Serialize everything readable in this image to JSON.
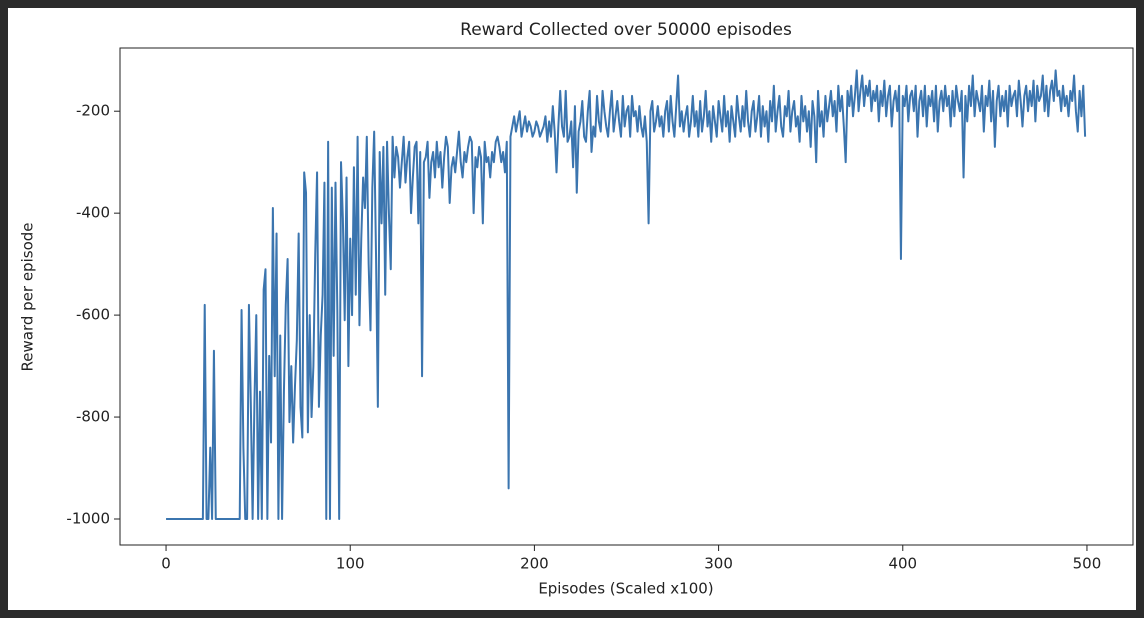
{
  "chart_data": {
    "type": "line",
    "title": "Reward Collected over 50000 episodes",
    "x_label": "Episodes (Scaled x100)",
    "y_label": "Reward per episode",
    "color": "#3b75af",
    "grid": false,
    "xlim": [
      -25,
      525
    ],
    "ylim": [
      -1051,
      -76
    ],
    "xticks": [
      0,
      100,
      200,
      300,
      400,
      500
    ],
    "yticks": [
      -1000,
      -800,
      -600,
      -400,
      -200
    ],
    "x": [
      0,
      1,
      2,
      3,
      4,
      5,
      6,
      7,
      8,
      9,
      10,
      11,
      12,
      13,
      14,
      15,
      16,
      17,
      18,
      19,
      20,
      21,
      22,
      23,
      24,
      25,
      26,
      27,
      28,
      29,
      30,
      31,
      32,
      33,
      34,
      35,
      36,
      37,
      38,
      39,
      40,
      41,
      42,
      43,
      44,
      45,
      46,
      47,
      48,
      49,
      50,
      51,
      52,
      53,
      54,
      55,
      56,
      57,
      58,
      59,
      60,
      61,
      62,
      63,
      64,
      65,
      66,
      67,
      68,
      69,
      70,
      71,
      72,
      73,
      74,
      75,
      76,
      77,
      78,
      79,
      80,
      81,
      82,
      83,
      84,
      85,
      86,
      87,
      88,
      89,
      90,
      91,
      92,
      93,
      94,
      95,
      96,
      97,
      98,
      99,
      100,
      101,
      102,
      103,
      104,
      105,
      106,
      107,
      108,
      109,
      110,
      111,
      112,
      113,
      114,
      115,
      116,
      117,
      118,
      119,
      120,
      121,
      122,
      123,
      124,
      125,
      126,
      127,
      128,
      129,
      130,
      131,
      132,
      133,
      134,
      135,
      136,
      137,
      138,
      139,
      140,
      141,
      142,
      143,
      144,
      145,
      146,
      147,
      148,
      149,
      150,
      151,
      152,
      153,
      154,
      155,
      156,
      157,
      158,
      159,
      160,
      161,
      162,
      163,
      164,
      165,
      166,
      167,
      168,
      169,
      170,
      171,
      172,
      173,
      174,
      175,
      176,
      177,
      178,
      179,
      180,
      181,
      182,
      183,
      184,
      185,
      186,
      187,
      188,
      189,
      190,
      191,
      192,
      193,
      194,
      195,
      196,
      197,
      198,
      199,
      200,
      201,
      202,
      203,
      204,
      205,
      206,
      207,
      208,
      209,
      210,
      211,
      212,
      213,
      214,
      215,
      216,
      217,
      218,
      219,
      220,
      221,
      222,
      223,
      224,
      225,
      226,
      227,
      228,
      229,
      230,
      231,
      232,
      233,
      234,
      235,
      236,
      237,
      238,
      239,
      240,
      241,
      242,
      243,
      244,
      245,
      246,
      247,
      248,
      249,
      250,
      251,
      252,
      253,
      254,
      255,
      256,
      257,
      258,
      259,
      260,
      261,
      262,
      263,
      264,
      265,
      266,
      267,
      268,
      269,
      270,
      271,
      272,
      273,
      274,
      275,
      276,
      277,
      278,
      279,
      280,
      281,
      282,
      283,
      284,
      285,
      286,
      287,
      288,
      289,
      290,
      291,
      292,
      293,
      294,
      295,
      296,
      297,
      298,
      299,
      300,
      301,
      302,
      303,
      304,
      305,
      306,
      307,
      308,
      309,
      310,
      311,
      312,
      313,
      314,
      315,
      316,
      317,
      318,
      319,
      320,
      321,
      322,
      323,
      324,
      325,
      326,
      327,
      328,
      329,
      330,
      331,
      332,
      333,
      334,
      335,
      336,
      337,
      338,
      339,
      340,
      341,
      342,
      343,
      344,
      345,
      346,
      347,
      348,
      349,
      350,
      351,
      352,
      353,
      354,
      355,
      356,
      357,
      358,
      359,
      360,
      361,
      362,
      363,
      364,
      365,
      366,
      367,
      368,
      369,
      370,
      371,
      372,
      373,
      374,
      375,
      376,
      377,
      378,
      379,
      380,
      381,
      382,
      383,
      384,
      385,
      386,
      387,
      388,
      389,
      390,
      391,
      392,
      393,
      394,
      395,
      396,
      397,
      398,
      399,
      400,
      401,
      402,
      403,
      404,
      405,
      406,
      407,
      408,
      409,
      410,
      411,
      412,
      413,
      414,
      415,
      416,
      417,
      418,
      419,
      420,
      421,
      422,
      423,
      424,
      425,
      426,
      427,
      428,
      429,
      430,
      431,
      432,
      433,
      434,
      435,
      436,
      437,
      438,
      439,
      440,
      441,
      442,
      443,
      444,
      445,
      446,
      447,
      448,
      449,
      450,
      451,
      452,
      453,
      454,
      455,
      456,
      457,
      458,
      459,
      460,
      461,
      462,
      463,
      464,
      465,
      466,
      467,
      468,
      469,
      470,
      471,
      472,
      473,
      474,
      475,
      476,
      477,
      478,
      479,
      480,
      481,
      482,
      483,
      484,
      485,
      486,
      487,
      488,
      489,
      490,
      491,
      492,
      493,
      494,
      495,
      496,
      497,
      498,
      499
    ],
    "values": [
      -1000,
      -1000,
      -1000,
      -1000,
      -1000,
      -1000,
      -1000,
      -1000,
      -1000,
      -1000,
      -1000,
      -1000,
      -1000,
      -1000,
      -1000,
      -1000,
      -1000,
      -1000,
      -1000,
      -1000,
      -1000,
      -580,
      -1000,
      -1000,
      -860,
      -1000,
      -670,
      -1000,
      -1000,
      -1000,
      -1000,
      -1000,
      -1000,
      -1000,
      -1000,
      -1000,
      -1000,
      -1000,
      -1000,
      -1000,
      -1000,
      -590,
      -860,
      -1000,
      -1000,
      -580,
      -770,
      -1000,
      -770,
      -600,
      -1000,
      -750,
      -1000,
      -550,
      -510,
      -1000,
      -680,
      -850,
      -390,
      -720,
      -440,
      -1000,
      -640,
      -1000,
      -750,
      -580,
      -490,
      -810,
      -700,
      -850,
      -740,
      -650,
      -440,
      -780,
      -840,
      -320,
      -360,
      -830,
      -600,
      -800,
      -700,
      -480,
      -320,
      -780,
      -640,
      -560,
      -340,
      -1000,
      -260,
      -1000,
      -350,
      -680,
      -340,
      -590,
      -1000,
      -300,
      -410,
      -610,
      -330,
      -700,
      -450,
      -600,
      -310,
      -560,
      -250,
      -620,
      -450,
      -330,
      -390,
      -250,
      -500,
      -630,
      -350,
      -240,
      -480,
      -780,
      -280,
      -420,
      -270,
      -560,
      -260,
      -400,
      -510,
      -250,
      -330,
      -270,
      -290,
      -350,
      -300,
      -250,
      -340,
      -290,
      -260,
      -400,
      -330,
      -270,
      -260,
      -420,
      -280,
      -720,
      -300,
      -290,
      -260,
      -370,
      -300,
      -280,
      -330,
      -260,
      -310,
      -280,
      -350,
      -290,
      -250,
      -270,
      -380,
      -310,
      -290,
      -320,
      -280,
      -240,
      -300,
      -330,
      -280,
      -300,
      -270,
      -250,
      -260,
      -400,
      -290,
      -310,
      -270,
      -290,
      -420,
      -260,
      -300,
      -290,
      -330,
      -280,
      -300,
      -260,
      -250,
      -270,
      -300,
      -280,
      -320,
      -260,
      -940,
      -250,
      -230,
      -210,
      -240,
      -220,
      -200,
      -250,
      -230,
      -210,
      -240,
      -220,
      -230,
      -250,
      -240,
      -220,
      -230,
      -250,
      -240,
      -230,
      -210,
      -260,
      -220,
      -250,
      -190,
      -240,
      -320,
      -230,
      -160,
      -230,
      -250,
      -160,
      -260,
      -250,
      -220,
      -310,
      -190,
      -360,
      -240,
      -220,
      -180,
      -250,
      -260,
      -200,
      -160,
      -280,
      -230,
      -250,
      -170,
      -220,
      -240,
      -160,
      -200,
      -230,
      -250,
      -200,
      -160,
      -240,
      -210,
      -180,
      -220,
      -250,
      -170,
      -230,
      -200,
      -190,
      -250,
      -170,
      -210,
      -200,
      -240,
      -190,
      -230,
      -250,
      -210,
      -260,
      -420,
      -200,
      -180,
      -240,
      -220,
      -190,
      -230,
      -210,
      -250,
      -200,
      -180,
      -240,
      -170,
      -220,
      -250,
      -190,
      -130,
      -230,
      -200,
      -240,
      -210,
      -190,
      -250,
      -220,
      -170,
      -230,
      -200,
      -250,
      -180,
      -240,
      -210,
      -160,
      -230,
      -200,
      -260,
      -190,
      -220,
      -250,
      -180,
      -210,
      -240,
      -170,
      -230,
      -200,
      -260,
      -190,
      -220,
      -250,
      -170,
      -210,
      -240,
      -190,
      -230,
      -160,
      -220,
      -250,
      -200,
      -180,
      -240,
      -210,
      -170,
      -250,
      -190,
      -230,
      -200,
      -260,
      -180,
      -220,
      -150,
      -240,
      -200,
      -170,
      -230,
      -250,
      -190,
      -210,
      -160,
      -240,
      -200,
      -180,
      -230,
      -210,
      -260,
      -170,
      -220,
      -190,
      -240,
      -200,
      -270,
      -180,
      -210,
      -300,
      -160,
      -230,
      -200,
      -250,
      -170,
      -220,
      -190,
      -160,
      -210,
      -180,
      -240,
      -150,
      -200,
      -170,
      -230,
      -300,
      -160,
      -190,
      -150,
      -210,
      -170,
      -120,
      -200,
      -160,
      -130,
      -190,
      -150,
      -170,
      -140,
      -200,
      -160,
      -180,
      -150,
      -220,
      -160,
      -190,
      -140,
      -210,
      -170,
      -150,
      -230,
      -180,
      -160,
      -200,
      -150,
      -490,
      -170,
      -190,
      -150,
      -220,
      -170,
      -160,
      -200,
      -150,
      -250,
      -180,
      -160,
      -210,
      -150,
      -230,
      -170,
      -190,
      -160,
      -220,
      -150,
      -240,
      -180,
      -160,
      -200,
      -150,
      -190,
      -170,
      -230,
      -160,
      -210,
      -150,
      -180,
      -200,
      -160,
      -330,
      -170,
      -220,
      -150,
      -190,
      -130,
      -210,
      -160,
      -180,
      -200,
      -150,
      -240,
      -170,
      -190,
      -140,
      -220,
      -160,
      -270,
      -180,
      -150,
      -210,
      -170,
      -200,
      -160,
      -230,
      -150,
      -190,
      -170,
      -160,
      -210,
      -140,
      -180,
      -230,
      -170,
      -150,
      -200,
      -160,
      -190,
      -140,
      -220,
      -150,
      -180,
      -170,
      -130,
      -200,
      -150,
      -210,
      -160,
      -140,
      -180,
      -120,
      -170,
      -160,
      -200,
      -150,
      -190,
      -170,
      -210,
      -160,
      -180,
      -130,
      -200,
      -240,
      -160,
      -210,
      -150,
      -250
    ]
  }
}
